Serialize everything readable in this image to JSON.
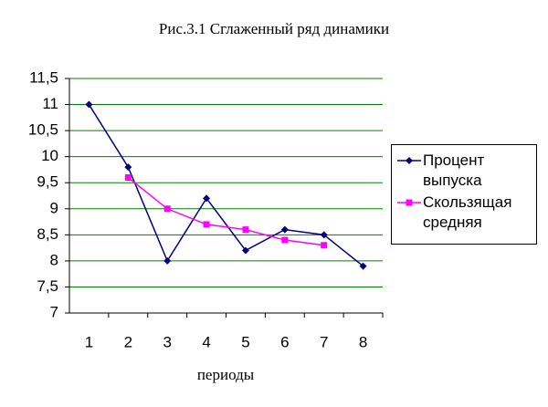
{
  "chart_data": {
    "type": "line",
    "title": "Рис.3.1 Сглаженный ряд динамики",
    "x_label": "периоды",
    "categories": [
      "1",
      "2",
      "3",
      "4",
      "5",
      "6",
      "7",
      "8"
    ],
    "series": [
      {
        "name": "Процент выпуска",
        "color": "#000080",
        "marker": "diamond",
        "values": [
          11,
          9.8,
          8,
          9.2,
          8.2,
          8.6,
          8.5,
          7.9
        ]
      },
      {
        "name": "Скользящая средняя",
        "color": "#ff00ff",
        "marker": "square",
        "values": [
          null,
          9.6,
          9,
          8.7,
          8.6,
          8.4,
          8.3,
          null
        ]
      }
    ],
    "ylim": [
      7,
      11.5
    ],
    "yticks": [
      7,
      {
        "value": 7.5,
        "label": "7,5"
      },
      8,
      {
        "value": 8.5,
        "label": "8,5"
      },
      9,
      {
        "value": 9.5,
        "label": "9,5"
      },
      10,
      {
        "value": 10.5,
        "label": "10,5"
      },
      11,
      {
        "value": 11.5,
        "label": "11,5"
      }
    ],
    "grid": true,
    "grid_color": "#008000",
    "legend": "right"
  }
}
